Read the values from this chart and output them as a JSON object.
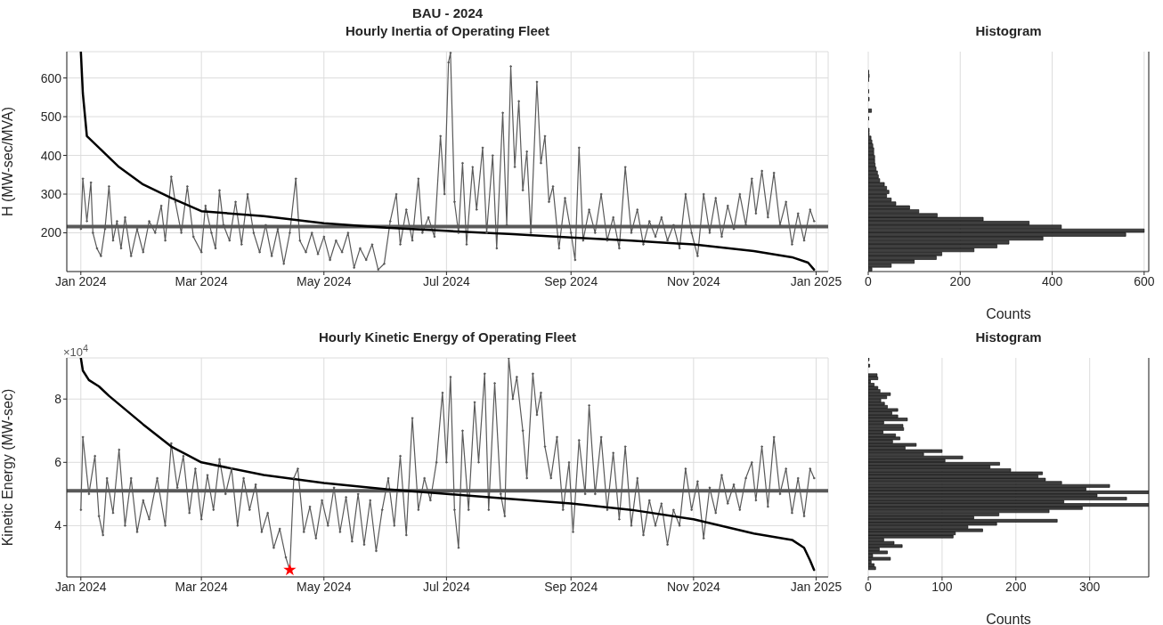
{
  "chart_data": [
    {
      "type": "line",
      "title": "BAU - 2024",
      "subtitle": "Hourly Inertia of Operating Fleet",
      "ylabel": "H (MW-sec/MVA)",
      "xlim": [
        "2023-12-25",
        "2025-01-07"
      ],
      "xticks": [
        {
          "value": "2024-01-01",
          "label": "Jan 2024"
        },
        {
          "value": "2024-03-01",
          "label": "Mar 2024"
        },
        {
          "value": "2024-05-01",
          "label": "May 2024"
        },
        {
          "value": "2024-07-01",
          "label": "Jul 2024"
        },
        {
          "value": "2024-09-01",
          "label": "Sep 2024"
        },
        {
          "value": "2024-11-01",
          "label": "Nov 2024"
        },
        {
          "value": "2025-01-01",
          "label": "Jan 2025"
        }
      ],
      "ylim": [
        100,
        668
      ],
      "yticks": [
        200,
        300,
        400,
        500,
        600
      ],
      "grid": true,
      "marker": "circle",
      "ref_lines": [
        {
          "axis": "y",
          "value": 216,
          "color": "#595959"
        }
      ],
      "series": [
        {
          "color": "#595959",
          "x": [
            "2024-01-01",
            "2024-01-02",
            "2024-01-04",
            "2024-01-06",
            "2024-01-07",
            "2024-01-09",
            "2024-01-11",
            "2024-01-13",
            "2024-01-15",
            "2024-01-17",
            "2024-01-19",
            "2024-01-21",
            "2024-01-23",
            "2024-01-26",
            "2024-01-29",
            "2024-02-01",
            "2024-02-04",
            "2024-02-07",
            "2024-02-10",
            "2024-02-12",
            "2024-02-15",
            "2024-02-17",
            "2024-02-20",
            "2024-02-23",
            "2024-02-26",
            "2024-03-01",
            "2024-03-03",
            "2024-03-06",
            "2024-03-08",
            "2024-03-10",
            "2024-03-12",
            "2024-03-15",
            "2024-03-18",
            "2024-03-21",
            "2024-03-24",
            "2024-03-27",
            "2024-03-30",
            "2024-04-02",
            "2024-04-05",
            "2024-04-08",
            "2024-04-11",
            "2024-04-14",
            "2024-04-17",
            "2024-04-19",
            "2024-04-22",
            "2024-04-25",
            "2024-04-28",
            "2024-05-01",
            "2024-05-04",
            "2024-05-07",
            "2024-05-10",
            "2024-05-13",
            "2024-05-16",
            "2024-05-19",
            "2024-05-22",
            "2024-05-25",
            "2024-05-28",
            "2024-05-31",
            "2024-06-03",
            "2024-06-06",
            "2024-06-08",
            "2024-06-11",
            "2024-06-14",
            "2024-06-17",
            "2024-06-19",
            "2024-06-22",
            "2024-06-25",
            "2024-06-28",
            "2024-06-30",
            "2024-07-02",
            "2024-07-03",
            "2024-07-05",
            "2024-07-07",
            "2024-07-09",
            "2024-07-11",
            "2024-07-14",
            "2024-07-16",
            "2024-07-19",
            "2024-07-21",
            "2024-07-24",
            "2024-07-26",
            "2024-07-29",
            "2024-07-31",
            "2024-08-02",
            "2024-08-04",
            "2024-08-06",
            "2024-08-08",
            "2024-08-10",
            "2024-08-12",
            "2024-08-15",
            "2024-08-17",
            "2024-08-19",
            "2024-08-21",
            "2024-08-23",
            "2024-08-26",
            "2024-08-29",
            "2024-09-01",
            "2024-09-03",
            "2024-09-05",
            "2024-09-07",
            "2024-09-10",
            "2024-09-13",
            "2024-09-16",
            "2024-09-19",
            "2024-09-22",
            "2024-09-25",
            "2024-09-28",
            "2024-10-01",
            "2024-10-04",
            "2024-10-07",
            "2024-10-10",
            "2024-10-13",
            "2024-10-16",
            "2024-10-19",
            "2024-10-22",
            "2024-10-25",
            "2024-10-28",
            "2024-10-31",
            "2024-11-03",
            "2024-11-06",
            "2024-11-09",
            "2024-11-12",
            "2024-11-15",
            "2024-11-18",
            "2024-11-21",
            "2024-11-24",
            "2024-11-27",
            "2024-11-30",
            "2024-12-02",
            "2024-12-05",
            "2024-12-08",
            "2024-12-11",
            "2024-12-14",
            "2024-12-17",
            "2024-12-20",
            "2024-12-23",
            "2024-12-26",
            "2024-12-29",
            "2024-12-31"
          ],
          "values": [
            210,
            340,
            230,
            330,
            200,
            160,
            140,
            210,
            320,
            180,
            230,
            160,
            240,
            140,
            210,
            150,
            230,
            200,
            270,
            180,
            345,
            280,
            200,
            320,
            190,
            150,
            270,
            200,
            160,
            310,
            220,
            180,
            280,
            170,
            300,
            200,
            150,
            220,
            140,
            210,
            120,
            200,
            340,
            180,
            150,
            200,
            145,
            190,
            130,
            180,
            150,
            200,
            110,
            160,
            130,
            170,
            105,
            120,
            230,
            300,
            170,
            260,
            180,
            340,
            200,
            240,
            190,
            450,
            300,
            640,
            665,
            280,
            200,
            380,
            170,
            370,
            260,
            420,
            200,
            400,
            160,
            510,
            220,
            630,
            370,
            540,
            310,
            410,
            200,
            590,
            380,
            450,
            280,
            320,
            160,
            290,
            200,
            130,
            420,
            180,
            260,
            200,
            300,
            180,
            240,
            160,
            370,
            200,
            260,
            170,
            230,
            190,
            240,
            180,
            220,
            160,
            300,
            200,
            140,
            300,
            200,
            290,
            190,
            270,
            210,
            300,
            220,
            340,
            250,
            360,
            240,
            355,
            220,
            280,
            170,
            250,
            180,
            260,
            230
          ]
        },
        {
          "color": "#000000",
          "marker": "none",
          "x": [
            "2024-01-01",
            "2024-01-02",
            "2024-01-04",
            "2024-01-10",
            "2024-01-20",
            "2024-02-01",
            "2024-02-15",
            "2024-03-01",
            "2024-04-01",
            "2024-05-01",
            "2024-06-01",
            "2024-07-01",
            "2024-08-01",
            "2024-09-01",
            "2024-10-01",
            "2024-11-01",
            "2024-12-01",
            "2024-12-20",
            "2024-12-28",
            "2024-12-31"
          ],
          "values": [
            668,
            560,
            450,
            420,
            370,
            325,
            290,
            256,
            243,
            225,
            213,
            205,
            197,
            188,
            180,
            170,
            153,
            137,
            123,
            105
          ]
        }
      ]
    },
    {
      "type": "histogram",
      "orientation": "horizontal",
      "title": "Histogram",
      "xlabel": "Counts",
      "color": "#404040",
      "xlim": [
        0,
        610
      ],
      "xticks": [
        0,
        200,
        400,
        600
      ],
      "ylim": [
        100,
        668
      ],
      "grid": "x",
      "tick_labels": "x",
      "bins": [
        100,
        110,
        120,
        130,
        140,
        150,
        160,
        170,
        180,
        190,
        200,
        210,
        220,
        230,
        240,
        250,
        260,
        270,
        280,
        290,
        300,
        310,
        320,
        330,
        340,
        350,
        360,
        370,
        380,
        390,
        400,
        410,
        420,
        430,
        440,
        450,
        460,
        470,
        480,
        490,
        500,
        510,
        520,
        530,
        540,
        550,
        560,
        570,
        580,
        590,
        600,
        610,
        620
      ],
      "values": [
        8,
        50,
        100,
        148,
        160,
        230,
        280,
        306,
        380,
        560,
        600,
        420,
        350,
        250,
        150,
        110,
        90,
        60,
        50,
        40,
        45,
        40,
        35,
        25,
        22,
        20,
        17,
        15,
        14,
        14,
        12,
        12,
        10,
        8,
        6,
        2,
        2,
        0,
        0,
        1,
        0,
        7,
        0,
        0,
        2,
        0,
        1,
        0,
        0,
        1,
        2,
        1
      ]
    },
    {
      "type": "line",
      "title": "Hourly Kinetic Energy of Operating Fleet",
      "ylabel": "Kinetic Energy (MW-sec)",
      "annotations": [
        "×10$^{4}$"
      ],
      "xlim": [
        "2023-12-25",
        "2025-01-07"
      ],
      "xticks": [
        {
          "value": "2024-01-01",
          "label": "Jan 2024"
        },
        {
          "value": "2024-03-01",
          "label": "Mar 2024"
        },
        {
          "value": "2024-05-01",
          "label": "May 2024"
        },
        {
          "value": "2024-07-01",
          "label": "Jul 2024"
        },
        {
          "value": "2024-09-01",
          "label": "Sep 2024"
        },
        {
          "value": "2024-11-01",
          "label": "Nov 2024"
        },
        {
          "value": "2025-01-01",
          "label": "Jan 2025"
        }
      ],
      "ylim": [
        2.38,
        9.3
      ],
      "yticks": [
        4,
        6,
        8
      ],
      "grid": true,
      "marker": "circle",
      "ref_lines": [
        {
          "axis": "y",
          "value": 5.1,
          "color": "#595959"
        }
      ],
      "series": [
        {
          "color": "#595959",
          "x": [
            "2024-01-01",
            "2024-01-02",
            "2024-01-05",
            "2024-01-08",
            "2024-01-10",
            "2024-01-12",
            "2024-01-14",
            "2024-01-17",
            "2024-01-20",
            "2024-01-23",
            "2024-01-26",
            "2024-01-29",
            "2024-02-01",
            "2024-02-04",
            "2024-02-08",
            "2024-02-12",
            "2024-02-15",
            "2024-02-18",
            "2024-02-21",
            "2024-02-24",
            "2024-02-27",
            "2024-03-01",
            "2024-03-04",
            "2024-03-07",
            "2024-03-10",
            "2024-03-13",
            "2024-03-16",
            "2024-03-19",
            "2024-03-22",
            "2024-03-25",
            "2024-03-28",
            "2024-03-31",
            "2024-04-03",
            "2024-04-06",
            "2024-04-09",
            "2024-04-12",
            "2024-04-14",
            "2024-04-16",
            "2024-04-18",
            "2024-04-21",
            "2024-04-24",
            "2024-04-27",
            "2024-04-30",
            "2024-05-03",
            "2024-05-06",
            "2024-05-09",
            "2024-05-12",
            "2024-05-15",
            "2024-05-18",
            "2024-05-21",
            "2024-05-24",
            "2024-05-27",
            "2024-05-30",
            "2024-06-02",
            "2024-06-05",
            "2024-06-08",
            "2024-06-11",
            "2024-06-14",
            "2024-06-17",
            "2024-06-20",
            "2024-06-23",
            "2024-06-26",
            "2024-06-29",
            "2024-07-01",
            "2024-07-03",
            "2024-07-05",
            "2024-07-07",
            "2024-07-09",
            "2024-07-12",
            "2024-07-15",
            "2024-07-17",
            "2024-07-20",
            "2024-07-22",
            "2024-07-25",
            "2024-07-28",
            "2024-07-30",
            "2024-08-01",
            "2024-08-03",
            "2024-08-05",
            "2024-08-08",
            "2024-08-10",
            "2024-08-13",
            "2024-08-15",
            "2024-08-17",
            "2024-08-19",
            "2024-08-22",
            "2024-08-25",
            "2024-08-28",
            "2024-08-31",
            "2024-09-02",
            "2024-09-05",
            "2024-09-08",
            "2024-09-10",
            "2024-09-13",
            "2024-09-16",
            "2024-09-19",
            "2024-09-22",
            "2024-09-25",
            "2024-09-28",
            "2024-10-01",
            "2024-10-04",
            "2024-10-07",
            "2024-10-10",
            "2024-10-13",
            "2024-10-16",
            "2024-10-19",
            "2024-10-22",
            "2024-10-25",
            "2024-10-28",
            "2024-10-31",
            "2024-11-03",
            "2024-11-06",
            "2024-11-09",
            "2024-11-12",
            "2024-11-15",
            "2024-11-18",
            "2024-11-21",
            "2024-11-24",
            "2024-11-27",
            "2024-11-30",
            "2024-12-02",
            "2024-12-05",
            "2024-12-08",
            "2024-12-11",
            "2024-12-14",
            "2024-12-17",
            "2024-12-20",
            "2024-12-23",
            "2024-12-26",
            "2024-12-29",
            "2024-12-31"
          ],
          "values": [
            4.5,
            6.8,
            5,
            6.2,
            4.3,
            3.7,
            5.5,
            4.4,
            6.4,
            4,
            5.5,
            3.8,
            4.8,
            4.2,
            5.5,
            4,
            6.6,
            5.2,
            6.2,
            4.4,
            5.8,
            4.2,
            5.6,
            4.5,
            6.1,
            5,
            5.8,
            4,
            5.5,
            4.5,
            5.3,
            3.8,
            4.4,
            3.3,
            3.9,
            3,
            2.6,
            5.5,
            5.8,
            3.8,
            4.6,
            3.6,
            4.8,
            4,
            5.2,
            3.8,
            4.9,
            3.5,
            5,
            3.4,
            4.8,
            3.2,
            4.5,
            5.5,
            4,
            6.2,
            3.7,
            7.4,
            4.5,
            5.5,
            4.8,
            6,
            8.2,
            6,
            8.7,
            4.5,
            3.3,
            7,
            4.5,
            7.9,
            6,
            8.8,
            4.5,
            8.5,
            5,
            4.3,
            9.3,
            8,
            8.7,
            7,
            5.5,
            8.8,
            7.5,
            8.2,
            6.5,
            5.5,
            6.8,
            4.5,
            6,
            3.8,
            6.7,
            5,
            7.8,
            5,
            6.8,
            4.5,
            6.3,
            4.2,
            6.5,
            4,
            5.5,
            3.7,
            4.8,
            4,
            4.7,
            3.4,
            4.5,
            4,
            5.8,
            4.5,
            5.4,
            3.6,
            5.2,
            4.4,
            5.6,
            4.7,
            5.3,
            4.5,
            5.5,
            6,
            4.8,
            6.5,
            4.6,
            6.8,
            5,
            5.8,
            4.4,
            5.5,
            4.3,
            5.8,
            5.5
          ]
        },
        {
          "color": "#000000",
          "marker": "none",
          "x": [
            "2024-01-01",
            "2024-01-02",
            "2024-01-05",
            "2024-01-10",
            "2024-01-15",
            "2024-02-01",
            "2024-02-15",
            "2024-03-01",
            "2024-04-01",
            "2024-05-01",
            "2024-06-01",
            "2024-07-01",
            "2024-08-01",
            "2024-09-01",
            "2024-10-01",
            "2024-11-01",
            "2024-12-01",
            "2024-12-20",
            "2024-12-26",
            "2024-12-29",
            "2024-12-31"
          ],
          "values": [
            9.3,
            8.9,
            8.6,
            8.4,
            8.1,
            7.2,
            6.5,
            6,
            5.6,
            5.35,
            5.15,
            5,
            4.85,
            4.7,
            4.5,
            4.2,
            3.75,
            3.55,
            3.3,
            2.9,
            2.6
          ]
        },
        {
          "type": "scatter",
          "color": "#ff0000",
          "marker": "star",
          "x": [
            "2024-04-14"
          ],
          "values": [
            2.6
          ]
        }
      ]
    },
    {
      "type": "histogram",
      "orientation": "horizontal",
      "title": "Histogram",
      "xlabel": "Counts",
      "color": "#404040",
      "xlim": [
        0,
        380
      ],
      "xticks": [
        0,
        100,
        200,
        300
      ],
      "ylim": [
        2.38,
        9.3
      ],
      "grid": "x",
      "tick_labels": "x",
      "bins": [
        2.6,
        2.7,
        2.8,
        2.9,
        3.0,
        3.1,
        3.2,
        3.3,
        3.4,
        3.5,
        3.6,
        3.7,
        3.8,
        3.9,
        4.0,
        4.1,
        4.2,
        4.3,
        4.4,
        4.5,
        4.6,
        4.7,
        4.8,
        4.9,
        5.0,
        5.1,
        5.2,
        5.3,
        5.4,
        5.5,
        5.6,
        5.7,
        5.8,
        5.9,
        6.0,
        6.1,
        6.2,
        6.3,
        6.4,
        6.5,
        6.6,
        6.7,
        6.8,
        6.9,
        7.0,
        7.1,
        7.2,
        7.3,
        7.4,
        7.5,
        7.6,
        7.7,
        7.8,
        7.9,
        8.0,
        8.1,
        8.2,
        8.3,
        8.4,
        8.5,
        8.6,
        8.7,
        8.8,
        8.9,
        9.0,
        9.1,
        9.2,
        9.3
      ],
      "values": [
        10,
        8,
        4,
        30,
        6,
        26,
        15,
        46,
        35,
        21,
        115,
        118,
        155,
        135,
        174,
        256,
        143,
        177,
        245,
        290,
        380,
        265,
        350,
        310,
        380,
        295,
        327,
        262,
        240,
        230,
        236,
        193,
        165,
        178,
        104,
        128,
        75,
        100,
        50,
        65,
        33,
        43,
        37,
        20,
        48,
        47,
        21,
        53,
        40,
        32,
        40,
        26,
        22,
        17,
        25,
        30,
        16,
        13,
        8,
        3,
        13,
        12,
        0,
        0,
        2,
        0,
        1
      ]
    }
  ]
}
